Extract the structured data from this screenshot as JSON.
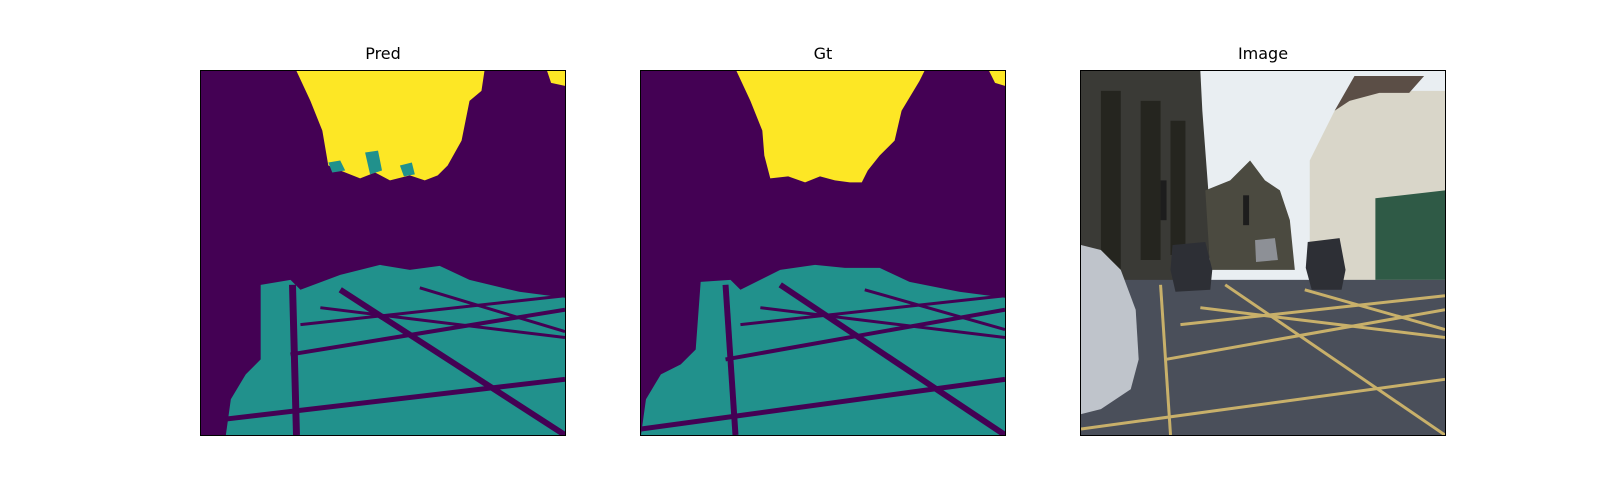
{
  "figure": {
    "panels": [
      {
        "title": "Pred"
      },
      {
        "title": "Gt"
      },
      {
        "title": "Image"
      }
    ]
  },
  "colors": {
    "class_background": "#440154",
    "class_road": "#21918c",
    "class_sky": "#fde725",
    "road_asphalt": "#4a4f5a",
    "road_marking": "#c8b06a",
    "building_dark": "#3a3a36",
    "sky_light": "#e9eef2"
  }
}
